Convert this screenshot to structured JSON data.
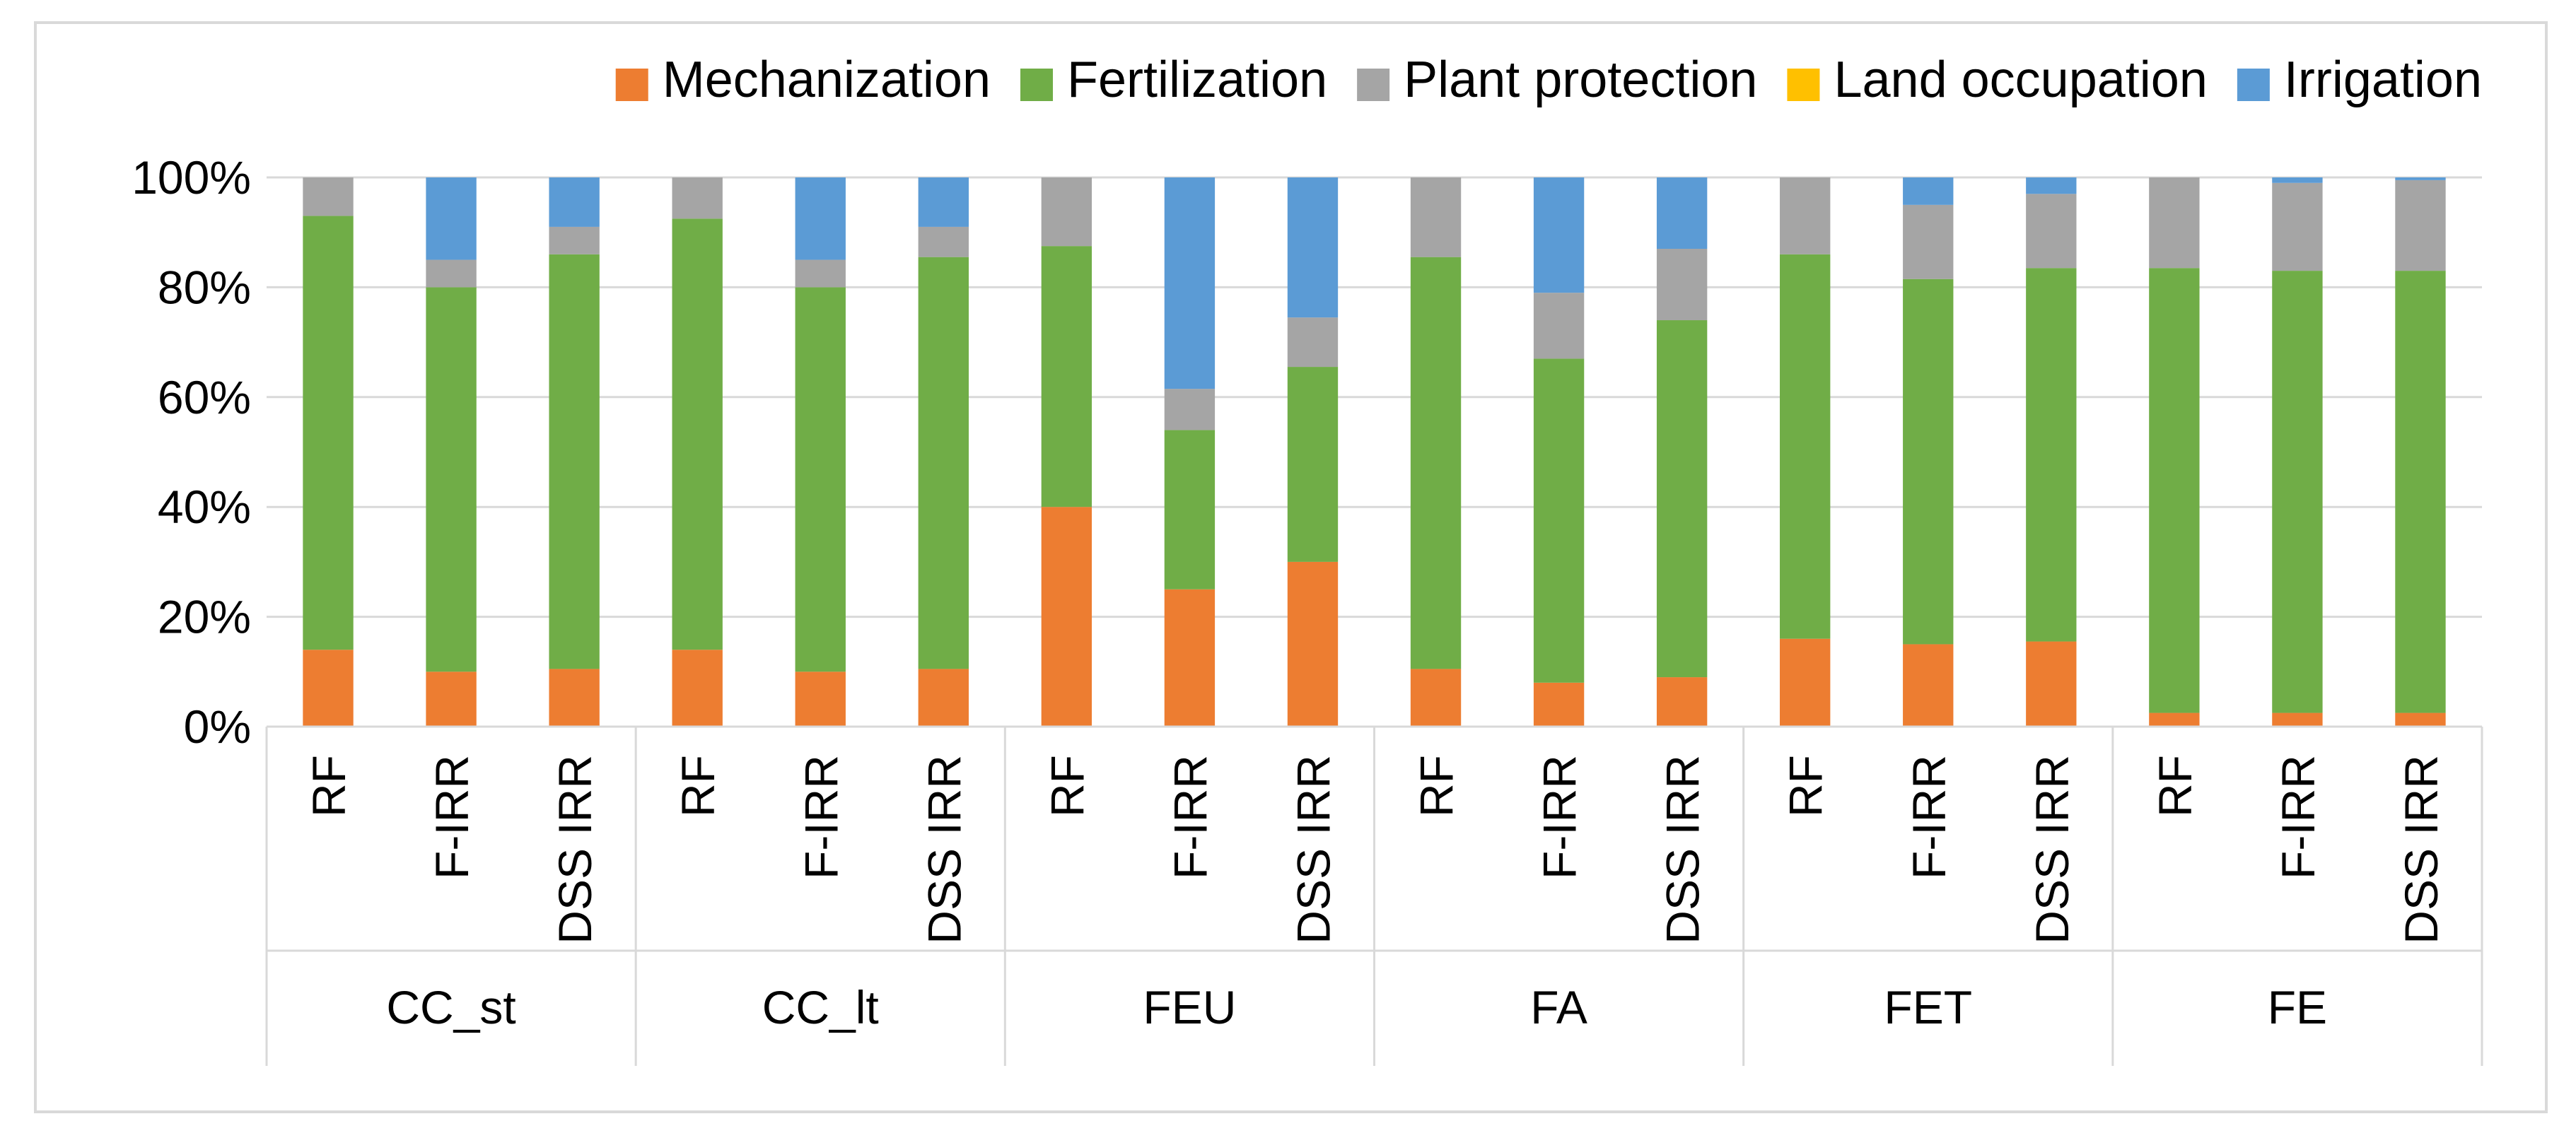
{
  "chart_data": {
    "type": "bar",
    "stacked": "percent",
    "title": "",
    "xlabel": "",
    "ylabel": "",
    "ylim": [
      0,
      100
    ],
    "yticks": [
      "0%",
      "20%",
      "40%",
      "60%",
      "80%",
      "100%"
    ],
    "legend_position": "top-right",
    "groups": [
      "CC_st",
      "CC_lt",
      "FEU",
      "FA",
      "FET",
      "FE"
    ],
    "categories": [
      "RF",
      "F-IRR",
      "DSS IRR"
    ],
    "series": [
      {
        "name": "Mechanization",
        "color": "#ED7D31",
        "values": [
          [
            14,
            10,
            10.5
          ],
          [
            14,
            10,
            10.5
          ],
          [
            40,
            25,
            30
          ],
          [
            10.5,
            8,
            9
          ],
          [
            16,
            15,
            15.5
          ],
          [
            2.5,
            2.5,
            2.5
          ]
        ]
      },
      {
        "name": "Fertilization",
        "color": "#70AD47",
        "values": [
          [
            79,
            70,
            75.5
          ],
          [
            78.5,
            70,
            75
          ],
          [
            47.5,
            29,
            35.5
          ],
          [
            75,
            59,
            65
          ],
          [
            70,
            66.5,
            68
          ],
          [
            81,
            80.5,
            80.5
          ]
        ]
      },
      {
        "name": "Plant protection",
        "color": "#A5A5A5",
        "values": [
          [
            7,
            5,
            5
          ],
          [
            7.5,
            5,
            5.5
          ],
          [
            12.5,
            7.5,
            9
          ],
          [
            14.5,
            12,
            13
          ],
          [
            14,
            13.5,
            13.5
          ],
          [
            16.5,
            16,
            16.5
          ]
        ]
      },
      {
        "name": "Land occupation",
        "color": "#FFC000",
        "values": [
          [
            0,
            0,
            0
          ],
          [
            0,
            0,
            0
          ],
          [
            0,
            0,
            0
          ],
          [
            0,
            0,
            0
          ],
          [
            0,
            0,
            0
          ],
          [
            0,
            0,
            0
          ]
        ]
      },
      {
        "name": "Irrigation",
        "color": "#5B9BD5",
        "values": [
          [
            0,
            15,
            9
          ],
          [
            0,
            15,
            9
          ],
          [
            0,
            38.5,
            25.5
          ],
          [
            0,
            21,
            13
          ],
          [
            0,
            5,
            3
          ],
          [
            0,
            1,
            0.5
          ]
        ]
      }
    ]
  }
}
